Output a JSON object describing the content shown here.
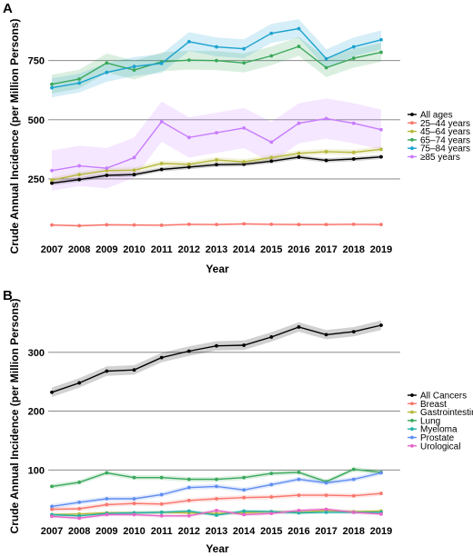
{
  "chart_data": [
    {
      "panel": "A",
      "type": "line",
      "xlabel": "Year",
      "ylabel": "Crude Annual Incidence (per Million Persons)",
      "x": [
        2007,
        2008,
        2009,
        2010,
        2011,
        2012,
        2013,
        2014,
        2015,
        2016,
        2017,
        2018,
        2019
      ],
      "ylim": [
        0,
        960
      ],
      "yticks": [
        250,
        500,
        750
      ],
      "grid": "horizontal at ticks",
      "legend_position": "right",
      "series": [
        {
          "name": "All ages",
          "color": "#000000",
          "values": [
            232,
            247,
            265,
            268,
            290,
            300,
            310,
            312,
            325,
            342,
            328,
            334,
            343
          ],
          "band": 9
        },
        {
          "name": "25–44 years",
          "color": "#f8766d",
          "values": [
            55,
            52,
            56,
            55,
            54,
            58,
            57,
            60,
            58,
            57,
            57,
            58,
            57
          ],
          "band": 5
        },
        {
          "name": "45–64 years",
          "color": "#b6b83b",
          "values": [
            245,
            268,
            285,
            287,
            315,
            312,
            330,
            322,
            340,
            358,
            365,
            362,
            375
          ],
          "band": 12
        },
        {
          "name": "65–74 years",
          "color": "#39a85a",
          "values": [
            650,
            672,
            740,
            710,
            745,
            752,
            750,
            740,
            770,
            810,
            720,
            760,
            785
          ],
          "band": 40
        },
        {
          "name": "75–84 years",
          "color": "#1ba2d0",
          "values": [
            635,
            655,
            700,
            725,
            738,
            830,
            808,
            800,
            865,
            885,
            758,
            808,
            838
          ],
          "band": 40
        },
        {
          "name": "≥85 years",
          "color": "#c77cff",
          "values": [
            285,
            305,
            295,
            340,
            492,
            425,
            445,
            465,
            405,
            485,
            505,
            485,
            458
          ],
          "band": 85
        }
      ]
    },
    {
      "panel": "B",
      "type": "line",
      "xlabel": "Year",
      "ylabel": "Crude Annual Incidence (per Million Persons)",
      "x": [
        2007,
        2008,
        2009,
        2010,
        2011,
        2012,
        2013,
        2014,
        2015,
        2016,
        2017,
        2018,
        2019
      ],
      "ylim": [
        0,
        380
      ],
      "yticks": [
        100,
        200,
        300
      ],
      "grid": "horizontal at ticks",
      "legend_position": "right",
      "series": [
        {
          "name": "All Cancers",
          "color": "#000000",
          "values": [
            232,
            248,
            268,
            270,
            291,
            302,
            311,
            312,
            326,
            343,
            330,
            335,
            346
          ],
          "band": 8
        },
        {
          "name": "Breast",
          "color": "#f8766d",
          "values": [
            33,
            34,
            41,
            43,
            42,
            48,
            51,
            53,
            54,
            57,
            57,
            56,
            60
          ],
          "band": 4
        },
        {
          "name": "Gastrointestinal",
          "color": "#b6b83b",
          "values": [
            24,
            25,
            27,
            27,
            28,
            27,
            26,
            27,
            29,
            28,
            31,
            29,
            30
          ],
          "band": 3
        },
        {
          "name": "Lung",
          "color": "#39a85a",
          "values": [
            72,
            79,
            95,
            87,
            87,
            84,
            84,
            87,
            94,
            96,
            80,
            101,
            96
          ],
          "band": 4
        },
        {
          "name": "Myeloma",
          "color": "#22b2a8",
          "values": [
            24,
            22,
            26,
            27,
            28,
            30,
            23,
            30,
            29,
            27,
            28,
            28,
            28
          ],
          "band": 3
        },
        {
          "name": "Prostate",
          "color": "#5f8df2",
          "values": [
            38,
            45,
            51,
            51,
            58,
            70,
            72,
            66,
            75,
            84,
            78,
            84,
            95
          ],
          "band": 4
        },
        {
          "name": "Urological",
          "color": "#e765c7",
          "values": [
            21,
            18,
            24,
            24,
            22,
            22,
            31,
            24,
            26,
            31,
            33,
            28,
            25
          ],
          "band": 3
        }
      ]
    }
  ]
}
